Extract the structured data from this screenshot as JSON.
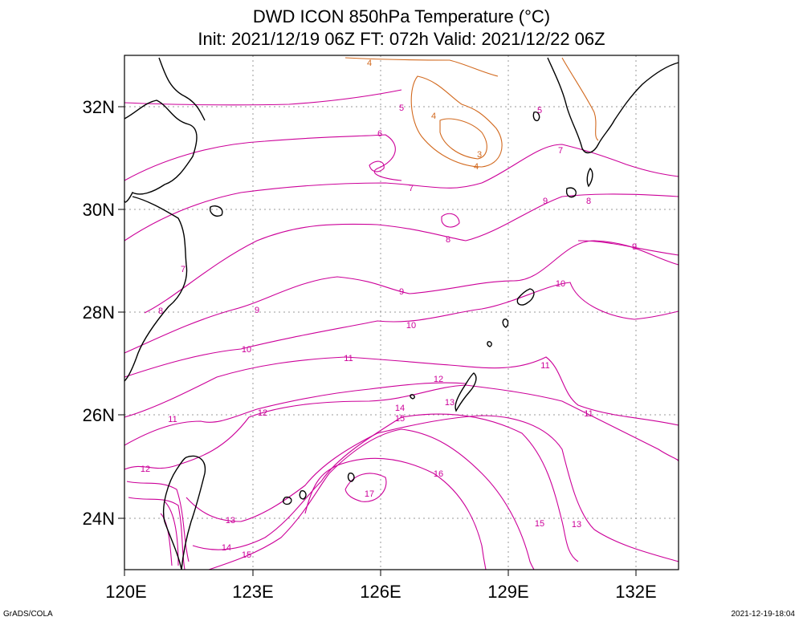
{
  "title_line1": "DWD ICON 850hPa Temperature (°C)",
  "title_line2": "Init: 2021/12/19 06Z  FT: 072h  Valid: 2021/12/22 06Z",
  "lon_labels": [
    "120E",
    "123E",
    "126E",
    "129E",
    "132E"
  ],
  "lat_labels": [
    "32N",
    "30N",
    "28N",
    "26N",
    "24N"
  ],
  "contour_labels": [
    "3",
    "4",
    "4",
    "4",
    "5",
    "5",
    "6",
    "7",
    "7",
    "7",
    "8",
    "8",
    "8",
    "9",
    "9",
    "9",
    "9",
    "10",
    "10",
    "10",
    "11",
    "11",
    "11",
    "11",
    "12",
    "12",
    "12",
    "13",
    "13",
    "13",
    "14",
    "14",
    "15",
    "15",
    "15",
    "16",
    "17"
  ],
  "footer_left": "GrADS/COLA",
  "footer_right": "2021-12-19-18:04",
  "colors": {
    "warm_contour": "#d2691e",
    "cool_contour": "#cc0099",
    "coastline": "#000000",
    "grid": "#999999"
  }
}
